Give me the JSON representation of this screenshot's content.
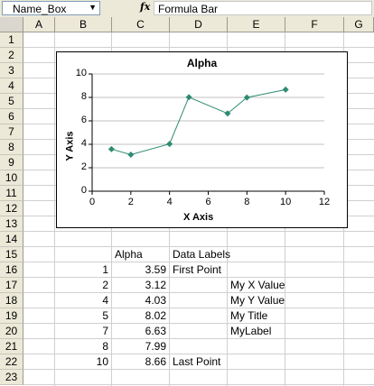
{
  "formula_bar": {
    "name_box": "Name_Box",
    "fx": "fx",
    "formula": "Formula Bar"
  },
  "columns": [
    "A",
    "B",
    "C",
    "D",
    "E",
    "F",
    "G"
  ],
  "rows": [
    "1",
    "2",
    "3",
    "4",
    "5",
    "6",
    "7",
    "8",
    "9",
    "10",
    "11",
    "12",
    "13",
    "14",
    "15",
    "16",
    "17",
    "18",
    "19",
    "20",
    "21",
    "22",
    "23"
  ],
  "table": {
    "header_c": "Alpha",
    "header_d": "Data Labels",
    "b": [
      "1",
      "2",
      "4",
      "5",
      "7",
      "8",
      "10"
    ],
    "c": [
      "3.59",
      "3.12",
      "4.03",
      "8.02",
      "6.63",
      "7.99",
      "8.66"
    ],
    "d": [
      "First Point",
      "",
      "",
      "",
      "",
      "",
      "Last Point"
    ],
    "e": [
      "",
      "My X Value",
      "My Y Value",
      "My Title",
      "MyLabel",
      "",
      ""
    ]
  },
  "chart_data": {
    "type": "scatter",
    "title": "Alpha",
    "xlabel": "X Axis",
    "ylabel": "Y Axis",
    "x": [
      1,
      2,
      4,
      5,
      7,
      8,
      10
    ],
    "y": [
      3.59,
      3.12,
      4.03,
      8.02,
      6.63,
      7.99,
      8.66
    ],
    "xlim": [
      0,
      12
    ],
    "ylim": [
      0,
      10
    ],
    "xticks": [
      "0",
      "2",
      "4",
      "6",
      "8",
      "10",
      "12"
    ],
    "yticks": [
      "0",
      "2",
      "4",
      "6",
      "8",
      "10"
    ],
    "grid": true,
    "color": "#2e8b72",
    "series_style": "line-with-markers"
  }
}
